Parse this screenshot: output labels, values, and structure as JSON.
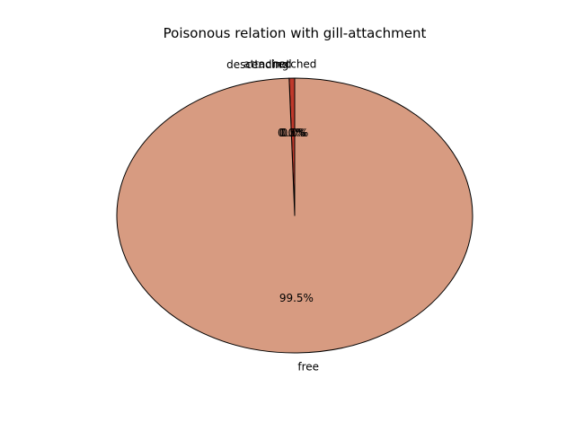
{
  "chart_data": {
    "type": "pie",
    "title": "Poisonous relation with gill-attachment",
    "slices": [
      {
        "label": "attached",
        "value": 0.5,
        "pct_label": "0.5%",
        "color": "#c0392b"
      },
      {
        "label": "descending",
        "value": 0.0,
        "pct_label": "0.0%",
        "color": "#a93226"
      },
      {
        "label": "free",
        "value": 99.5,
        "pct_label": "99.5%",
        "color": "#d79b81"
      },
      {
        "label": "notched",
        "value": 0.0,
        "pct_label": "0.0%",
        "color": "#f39c12"
      }
    ],
    "edge_color": "#000000"
  }
}
